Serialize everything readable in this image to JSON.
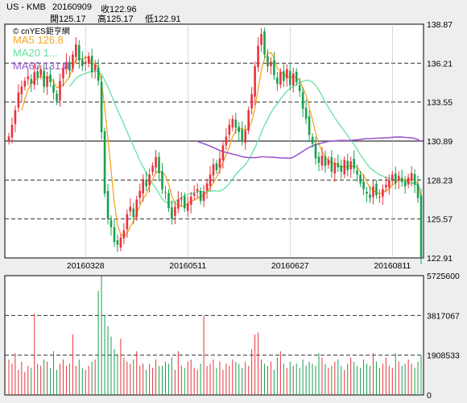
{
  "header": {
    "symbol": "US - KMB",
    "date": "20160909",
    "close_label": "收122.96",
    "open_label": "開125.17",
    "high_label": "高125.17",
    "low_label": "低122.91"
  },
  "brand": "© cnYES鉅亨網",
  "legend": [
    {
      "label": "MA5 126.8",
      "color": "#f5a623"
    },
    {
      "label": "MA20 1...",
      "color": "#66e0a0"
    },
    {
      "label": "MA60 131.0",
      "color": "#9b59d0"
    }
  ],
  "colors": {
    "up": "#e8333c",
    "down": "#1aa050",
    "grid": "#333333"
  },
  "chart_data": [
    {
      "type": "candlestick",
      "ylim": [
        122.91,
        138.87
      ],
      "yticks": [
        "138.87",
        "136.21",
        "133.55",
        "130.89",
        "128.23",
        "125.57",
        "122.91"
      ],
      "xticks": [
        "20160328",
        "20160511",
        "20160627",
        "20160811"
      ],
      "xtick_index": [
        24,
        56,
        88,
        120
      ],
      "n_bars": 130,
      "closes_approx": [
        131.2,
        132.0,
        133.0,
        134.2,
        134.6,
        135.0,
        135.3,
        134.8,
        135.6,
        135.2,
        135.8,
        134.6,
        135.3,
        134.9,
        134.2,
        133.6,
        135.0,
        135.9,
        136.3,
        135.7,
        136.8,
        137.5,
        136.4,
        136.0,
        136.3,
        136.7,
        135.6,
        136.1,
        135.0,
        131.5,
        127.3,
        125.6,
        125.0,
        124.0,
        123.8,
        124.3,
        124.8,
        125.9,
        126.4,
        125.7,
        126.9,
        127.5,
        128.3,
        127.8,
        128.6,
        129.2,
        129.8,
        128.7,
        127.6,
        127.4,
        126.3,
        125.6,
        126.4,
        126.9,
        127.0,
        126.3,
        126.6,
        127.1,
        127.3,
        127.6,
        126.8,
        127.4,
        128.0,
        128.6,
        129.3,
        128.9,
        129.7,
        130.6,
        131.2,
        132.0,
        132.4,
        131.8,
        131.5,
        130.9,
        131.6,
        133.0,
        134.1,
        136.0,
        137.4,
        138.2,
        136.8,
        136.0,
        136.3,
        135.4,
        134.8,
        135.6,
        135.0,
        135.8,
        134.7,
        135.5,
        134.9,
        134.3,
        133.1,
        132.4,
        131.3,
        130.7,
        129.7,
        129.4,
        129.9,
        129.2,
        129.6,
        128.8,
        129.4,
        129.1,
        128.8,
        129.6,
        128.9,
        129.5,
        129.0,
        128.6,
        128.0,
        127.6,
        127.3,
        127.0,
        127.8,
        127.2,
        127.1,
        127.6,
        127.9,
        128.2,
        128.6,
        128.0,
        128.5,
        128.1,
        127.8,
        128.4,
        128.7,
        127.9,
        127.0,
        122.96
      ],
      "series": [
        {
          "name": "MA5",
          "color": "#f5a623"
        },
        {
          "name": "MA20",
          "color": "#66e0a0"
        },
        {
          "name": "MA60",
          "color": "#9b59d0",
          "start_index": 60
        }
      ]
    },
    {
      "type": "bar",
      "name": "volume",
      "ylim": [
        0,
        5725600
      ],
      "yticks": [
        "5725600",
        "3817067",
        "1908533",
        "0"
      ],
      "values_approx": [
        1700000,
        1500000,
        2000000,
        1200000,
        1600000,
        1100000,
        1400000,
        1300000,
        3900000,
        1500000,
        1400000,
        1700000,
        1600000,
        1300000,
        2100000,
        1200000,
        1500000,
        1700000,
        1400000,
        1500000,
        2900000,
        1400000,
        1700000,
        1300000,
        1200000,
        1400000,
        1600000,
        1700000,
        5000000,
        5700000,
        3800000,
        3300000,
        2800000,
        2200000,
        1900000,
        2700000,
        1800000,
        1600000,
        1500000,
        1700000,
        2100000,
        1400000,
        1500000,
        1200000,
        1500000,
        1300000,
        1700000,
        1400000,
        1400000,
        1600000,
        1500000,
        1800000,
        1200000,
        2100000,
        1400000,
        1300000,
        1600000,
        1700000,
        1300000,
        1200000,
        1500000,
        3800000,
        1400000,
        1500000,
        1700000,
        1300000,
        1600000,
        1200000,
        1500000,
        1400000,
        1700000,
        1600000,
        1500000,
        1300000,
        1600000,
        1400000,
        2200000,
        2900000,
        3000000,
        1700000,
        1500000,
        1400000,
        1600000,
        1200000,
        1800000,
        2100000,
        1500000,
        1300000,
        1600000,
        1400000,
        1500000,
        1300000,
        1700000,
        1400000,
        1600000,
        1500000,
        1400000,
        2000000,
        1800000,
        1500000,
        1300000,
        1400000,
        1600000,
        1700000,
        1400000,
        1200000,
        1500000,
        1800000,
        1600000,
        1400000,
        1300000,
        1700000,
        1500000,
        1400000,
        2000000,
        1600000,
        1300000,
        1500000,
        1800000,
        1400000,
        1300000,
        2000000,
        1600000,
        1400000,
        1500000,
        1700000,
        1500000,
        1300000,
        1600000,
        1900000
      ]
    }
  ]
}
